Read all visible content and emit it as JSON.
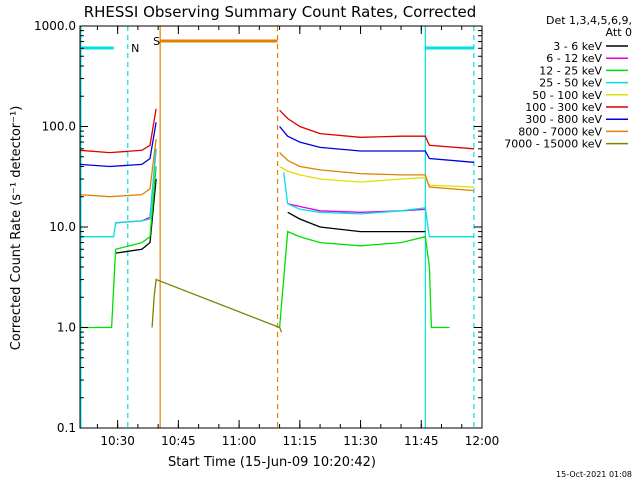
{
  "chart_data": {
    "type": "line",
    "title": "RHESSI Observing Summary Count Rates, Corrected",
    "xlabel": "Start Time (15-Jun-09 10:20:42)",
    "ylabel": "Corrected Count Rate (s⁻¹ detector⁻¹)",
    "yscale": "log",
    "ylim": [
      0.1,
      1000.0
    ],
    "xlim": [
      "10:20:42",
      "12:00:00"
    ],
    "x_ticks": [
      "10:30",
      "10:45",
      "11:00",
      "11:15",
      "11:30",
      "11:45",
      "12:00"
    ],
    "y_ticks": [
      "0.1",
      "1.0",
      "10.0",
      "100.0",
      "1000.0"
    ],
    "legend_header": [
      "Det 1,3,4,5,6,9,",
      "Att 0"
    ],
    "legend_position": "right",
    "series": [
      {
        "name": "3 - 6 keV",
        "color": "#000000",
        "x": [
          "10:20:42",
          "10:29:00",
          "10:29:30",
          "10:36:00",
          "10:38:00",
          "10:39:30",
          "11:09:30",
          "11:10:00",
          "11:12:00",
          "11:15:00",
          "11:20:00",
          "11:30:00",
          "11:40:00",
          "11:46:00",
          "11:46:30"
        ],
        "y": [
          null,
          null,
          5.5,
          6.0,
          7.0,
          30.0,
          null,
          null,
          14.0,
          12.0,
          10.0,
          9.0,
          9.0,
          9.0,
          null
        ]
      },
      {
        "name": "6 - 12 keV",
        "color": "#e000e0",
        "x": [
          "10:20:42",
          "10:29:00",
          "10:29:30",
          "10:36:00",
          "10:38:00",
          "10:39:30",
          "11:09:30",
          "11:10:00",
          "11:12:00",
          "11:15:00",
          "11:20:00",
          "11:30:00",
          "11:40:00",
          "11:46:00",
          "11:46:30"
        ],
        "y": [
          null,
          null,
          11.0,
          11.5,
          12.5,
          60.0,
          null,
          null,
          17.0,
          16.0,
          14.5,
          14.0,
          14.5,
          15.0,
          null
        ]
      },
      {
        "name": "12 - 25 keV",
        "color": "#00e000",
        "x": [
          "10:20:42",
          "10:28:30",
          "10:29:30",
          "10:36:00",
          "10:38:00",
          "10:39:30",
          "11:09:30",
          "11:10:00",
          "11:12:00",
          "11:15:00",
          "11:20:00",
          "11:30:00",
          "11:40:00",
          "11:46:00",
          "11:47:00",
          "11:47:30",
          "11:49:00",
          "11:52:00"
        ],
        "y": [
          1.0,
          1.0,
          6.0,
          7.0,
          8.0,
          40.0,
          null,
          1.0,
          9.0,
          8.0,
          7.0,
          6.5,
          7.0,
          8.0,
          4.0,
          1.0,
          1.0,
          1.0
        ]
      },
      {
        "name": "25 - 50 keV",
        "color": "#00e0e0",
        "x": [
          "10:20:42",
          "10:29:00",
          "10:29:30",
          "10:36:00",
          "10:38:00",
          "10:39:30",
          "11:09:30",
          "11:10:00",
          "11:11:00",
          "11:12:00",
          "11:15:00",
          "11:20:00",
          "11:30:00",
          "11:40:00",
          "11:46:00",
          "11:47:00",
          "11:55:00",
          "11:58:00"
        ],
        "y": [
          8.0,
          8.0,
          11.0,
          11.5,
          12.0,
          60.0,
          null,
          null,
          35.0,
          17.0,
          15.0,
          14.0,
          13.5,
          14.5,
          15.5,
          8.0,
          8.0,
          8.0
        ]
      },
      {
        "name": "50 - 100 keV",
        "color": "#e0e000",
        "x": [
          "10:20:42",
          "10:36:00",
          "10:38:00",
          "10:39:30",
          "11:09:30",
          "11:10:00",
          "11:12:00",
          "11:15:00",
          "11:20:00",
          "11:30:00",
          "11:40:00",
          "11:46:00",
          "11:47:00",
          "11:58:00"
        ],
        "y": [
          null,
          null,
          null,
          null,
          null,
          40.0,
          36.0,
          33.0,
          30.0,
          28.0,
          30.0,
          31.0,
          26.0,
          25.0
        ]
      },
      {
        "name": "100 - 300 keV",
        "color": "#e00000",
        "x": [
          "10:20:42",
          "10:28:00",
          "10:36:00",
          "10:38:00",
          "10:39:30",
          "11:09:30",
          "11:10:00",
          "11:12:00",
          "11:15:00",
          "11:20:00",
          "11:30:00",
          "11:40:00",
          "11:46:00",
          "11:47:00",
          "11:58:00"
        ],
        "y": [
          58.0,
          55.0,
          58.0,
          65.0,
          150.0,
          null,
          145.0,
          120.0,
          100.0,
          85.0,
          78.0,
          80.0,
          80.0,
          65.0,
          60.0
        ]
      },
      {
        "name": "300 - 800 keV",
        "color": "#0000e0",
        "x": [
          "10:20:42",
          "10:28:00",
          "10:36:00",
          "10:38:00",
          "10:39:30",
          "11:09:30",
          "11:10:00",
          "11:12:00",
          "11:15:00",
          "11:20:00",
          "11:30:00",
          "11:40:00",
          "11:46:00",
          "11:47:00",
          "11:58:00"
        ],
        "y": [
          42.0,
          40.0,
          42.0,
          48.0,
          110.0,
          null,
          100.0,
          80.0,
          70.0,
          62.0,
          57.0,
          57.0,
          57.0,
          48.0,
          44.0
        ]
      },
      {
        "name": "800 - 7000 keV",
        "color": "#e08000",
        "x": [
          "10:20:42",
          "10:28:00",
          "10:36:00",
          "10:38:00",
          "10:39:30",
          "11:09:30",
          "11:10:00",
          "11:12:00",
          "11:15:00",
          "11:20:00",
          "11:30:00",
          "11:40:00",
          "11:46:00",
          "11:47:00",
          "11:58:00"
        ],
        "y": [
          21.0,
          20.0,
          21.0,
          24.0,
          75.0,
          null,
          55.0,
          46.0,
          40.0,
          37.0,
          34.0,
          33.0,
          33.0,
          25.0,
          23.0
        ]
      },
      {
        "name": "7000 - 15000 keV",
        "color": "#808000",
        "x": [
          "10:38:30",
          "10:39:00",
          "10:39:30",
          "11:10:00",
          "11:10:30",
          "11:11:00"
        ],
        "y": [
          1.0,
          2.0,
          3.0,
          1.0,
          0.9,
          null
        ]
      }
    ],
    "annotations": [
      {
        "text": "N",
        "color": "#00e0e0"
      },
      {
        "text": "S",
        "color": "#e08000"
      }
    ],
    "bars": [
      {
        "label": "N",
        "color": "#00e0e0",
        "from": "10:20:42",
        "to": "10:29:00"
      },
      {
        "label": "S",
        "color": "#e08000",
        "from": "10:40:30",
        "to": "11:09:30"
      },
      {
        "label": "N",
        "color": "#00e0e0",
        "from": "11:46:00",
        "to": "11:58:00"
      }
    ],
    "vertical_lines": [
      {
        "time": "10:32:30",
        "color": "#00e0e0",
        "style": "dashed"
      },
      {
        "time": "10:40:30",
        "color": "#e08000",
        "style": "solid"
      },
      {
        "time": "11:09:30",
        "color": "#e08000",
        "style": "dashed"
      },
      {
        "time": "11:46:00",
        "color": "#00e0e0",
        "style": "solid"
      },
      {
        "time": "11:58:00",
        "color": "#00e0e0",
        "style": "dashed"
      }
    ],
    "grid": false
  },
  "footer_timestamp": "15-Oct-2021 01:08"
}
